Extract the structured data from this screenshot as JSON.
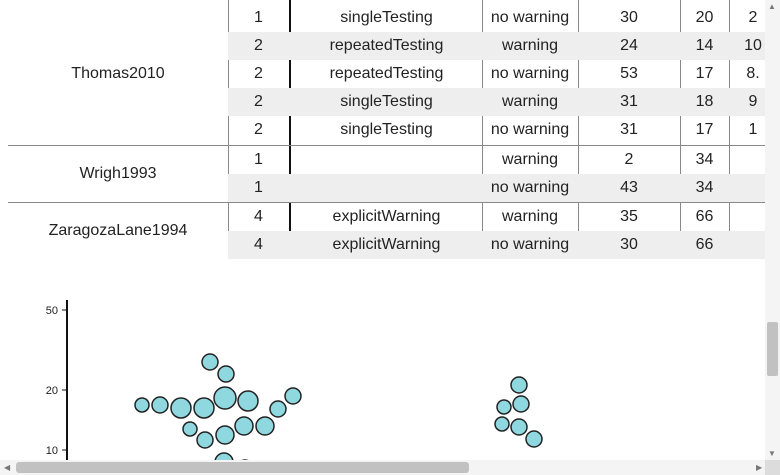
{
  "table": {
    "groups": [
      {
        "study": "Thomas2010",
        "rows": [
          {
            "n": "1",
            "type": "singleTesting",
            "warning": "no warning",
            "a": "30",
            "b": "20",
            "c": "2"
          },
          {
            "n": "2",
            "type": "repeatedTesting",
            "warning": "warning",
            "a": "24",
            "b": "14",
            "c": "10"
          },
          {
            "n": "2",
            "type": "repeatedTesting",
            "warning": "no warning",
            "a": "53",
            "b": "17",
            "c": "8."
          },
          {
            "n": "2",
            "type": "singleTesting",
            "warning": "warning",
            "a": "31",
            "b": "18",
            "c": "9"
          },
          {
            "n": "2",
            "type": "singleTesting",
            "warning": "no warning",
            "a": "31",
            "b": "17",
            "c": "1"
          }
        ]
      },
      {
        "study": "Wrigh1993",
        "rows": [
          {
            "n": "1",
            "type": "",
            "warning": "warning",
            "a": "2",
            "b": "34",
            "c": ""
          },
          {
            "n": "1",
            "type": "",
            "warning": "no warning",
            "a": "43",
            "b": "34",
            "c": ""
          }
        ]
      },
      {
        "study": "ZaragozaLane1994",
        "rows": [
          {
            "n": "4",
            "type": "explicitWarning",
            "warning": "warning",
            "a": "35",
            "b": "66",
            "c": ""
          },
          {
            "n": "4",
            "type": "explicitWarning",
            "warning": "no warning",
            "a": "30",
            "b": "66",
            "c": ""
          }
        ]
      }
    ]
  },
  "chart_data": {
    "type": "scatter",
    "yscale": "log",
    "yticks": [
      "50",
      "20",
      "10"
    ],
    "colors": {
      "fill": "#8fd8e0",
      "stroke": "#222222"
    }
  }
}
